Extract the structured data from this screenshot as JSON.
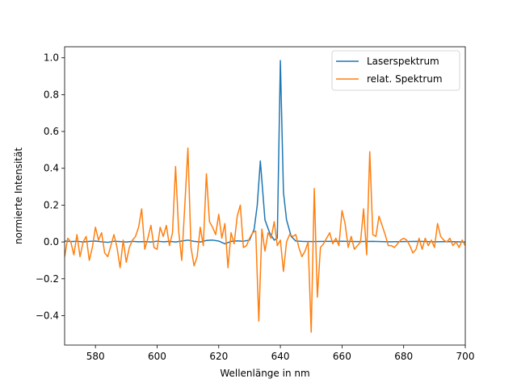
{
  "chart_data": {
    "type": "line",
    "title": "",
    "xlabel": "Wellenlänge in nm",
    "ylabel": "normierte Intensität",
    "xlim": [
      570,
      700
    ],
    "ylim": [
      -0.56,
      1.06
    ],
    "xticks": [
      580,
      600,
      620,
      640,
      660,
      680,
      700
    ],
    "yticks": [
      -0.4,
      -0.2,
      0.0,
      0.2,
      0.4,
      0.6,
      0.8,
      1.0
    ],
    "grid": false,
    "legend_position": "top-right",
    "series": [
      {
        "name": "Laserspektrum",
        "color": "#1f77b4",
        "x": [
          570,
          572,
          574,
          576,
          578,
          580,
          582,
          584,
          586,
          588,
          590,
          592,
          594,
          596,
          598,
          600,
          602,
          604,
          606,
          608,
          610,
          612,
          614,
          616,
          618,
          620,
          622,
          624,
          626,
          628,
          630,
          631.5,
          632.5,
          633.5,
          635,
          636.5,
          638,
          639,
          640,
          641,
          642,
          643.5,
          645,
          647,
          650,
          655,
          660,
          665,
          670,
          675,
          680,
          685,
          690,
          695,
          700
        ],
        "y": [
          0.005,
          0.002,
          0.004,
          0.0,
          0.003,
          0.005,
          0.001,
          -0.002,
          0.004,
          0.002,
          0.0,
          0.003,
          0.001,
          0.002,
          0.0,
          0.004,
          0.001,
          0.003,
          0.0,
          0.005,
          0.01,
          0.003,
          0.0,
          0.008,
          0.01,
          0.005,
          -0.01,
          0.003,
          0.006,
          0.004,
          0.01,
          0.07,
          0.2,
          0.44,
          0.12,
          0.05,
          0.01,
          0.02,
          0.985,
          0.27,
          0.12,
          0.03,
          0.005,
          0.003,
          0.002,
          0.003,
          0.004,
          0.002,
          0.003,
          0.001,
          0.002,
          0.003,
          0.001,
          0.002,
          0.0
        ]
      },
      {
        "name": "relat. Spektrum",
        "color": "#ff7f0e",
        "x": [
          570,
          571,
          572,
          573,
          574,
          575,
          576,
          577,
          578,
          579,
          580,
          581,
          582,
          583,
          584,
          585,
          586,
          587,
          588,
          589,
          590,
          591,
          592,
          593,
          594,
          595,
          596,
          597,
          598,
          599,
          600,
          601,
          602,
          603,
          604,
          605,
          606,
          607,
          608,
          609,
          610,
          611,
          612,
          613,
          614,
          615,
          616,
          617,
          618,
          619,
          620,
          621,
          622,
          623,
          624,
          625,
          626,
          627,
          628,
          629,
          630,
          631,
          632,
          633,
          634,
          635,
          636,
          637,
          638,
          639,
          640,
          641,
          642,
          643,
          644,
          645,
          646,
          647,
          648,
          649,
          650,
          651,
          652,
          653,
          654,
          655,
          656,
          657,
          658,
          659,
          660,
          661,
          662,
          663,
          664,
          665,
          666,
          667,
          668,
          669,
          670,
          671,
          672,
          673,
          674,
          675,
          676,
          677,
          678,
          679,
          680,
          681,
          682,
          683,
          684,
          685,
          686,
          687,
          688,
          689,
          690,
          691,
          692,
          693,
          694,
          695,
          696,
          697,
          698,
          699,
          700
        ],
        "y": [
          -0.08,
          0.02,
          0.0,
          -0.07,
          0.04,
          -0.08,
          0.0,
          0.03,
          -0.1,
          -0.03,
          0.08,
          0.01,
          0.05,
          -0.06,
          -0.08,
          -0.02,
          0.04,
          -0.03,
          -0.14,
          0.01,
          -0.11,
          -0.03,
          0.01,
          0.03,
          0.08,
          0.18,
          -0.04,
          0.02,
          0.09,
          -0.03,
          -0.04,
          0.08,
          0.03,
          0.09,
          -0.02,
          0.05,
          0.41,
          0.06,
          -0.1,
          0.2,
          0.51,
          -0.03,
          -0.13,
          -0.08,
          0.08,
          -0.02,
          0.37,
          0.11,
          0.08,
          0.04,
          0.15,
          0.02,
          0.1,
          -0.14,
          0.05,
          -0.01,
          0.14,
          0.2,
          -0.03,
          -0.02,
          0.02,
          0.05,
          0.06,
          -0.43,
          0.07,
          -0.05,
          0.05,
          0.02,
          0.11,
          -0.02,
          0.01,
          -0.16,
          0.0,
          0.04,
          0.03,
          0.04,
          -0.03,
          -0.08,
          -0.05,
          0.0,
          -0.49,
          0.29,
          -0.3,
          -0.03,
          -0.01,
          0.02,
          0.05,
          -0.01,
          0.02,
          -0.02,
          0.17,
          0.1,
          -0.03,
          0.03,
          -0.04,
          -0.02,
          0.0,
          0.18,
          -0.07,
          0.49,
          0.04,
          0.03,
          0.14,
          0.09,
          0.04,
          -0.02,
          -0.02,
          -0.03,
          -0.01,
          0.01,
          0.02,
          0.01,
          -0.02,
          -0.06,
          -0.04,
          0.02,
          -0.04,
          0.02,
          -0.02,
          0.01,
          -0.03,
          0.1,
          0.03,
          0.01,
          0.0,
          0.02,
          -0.02,
          0.0,
          -0.03,
          0.01,
          -0.02
        ]
      }
    ]
  }
}
